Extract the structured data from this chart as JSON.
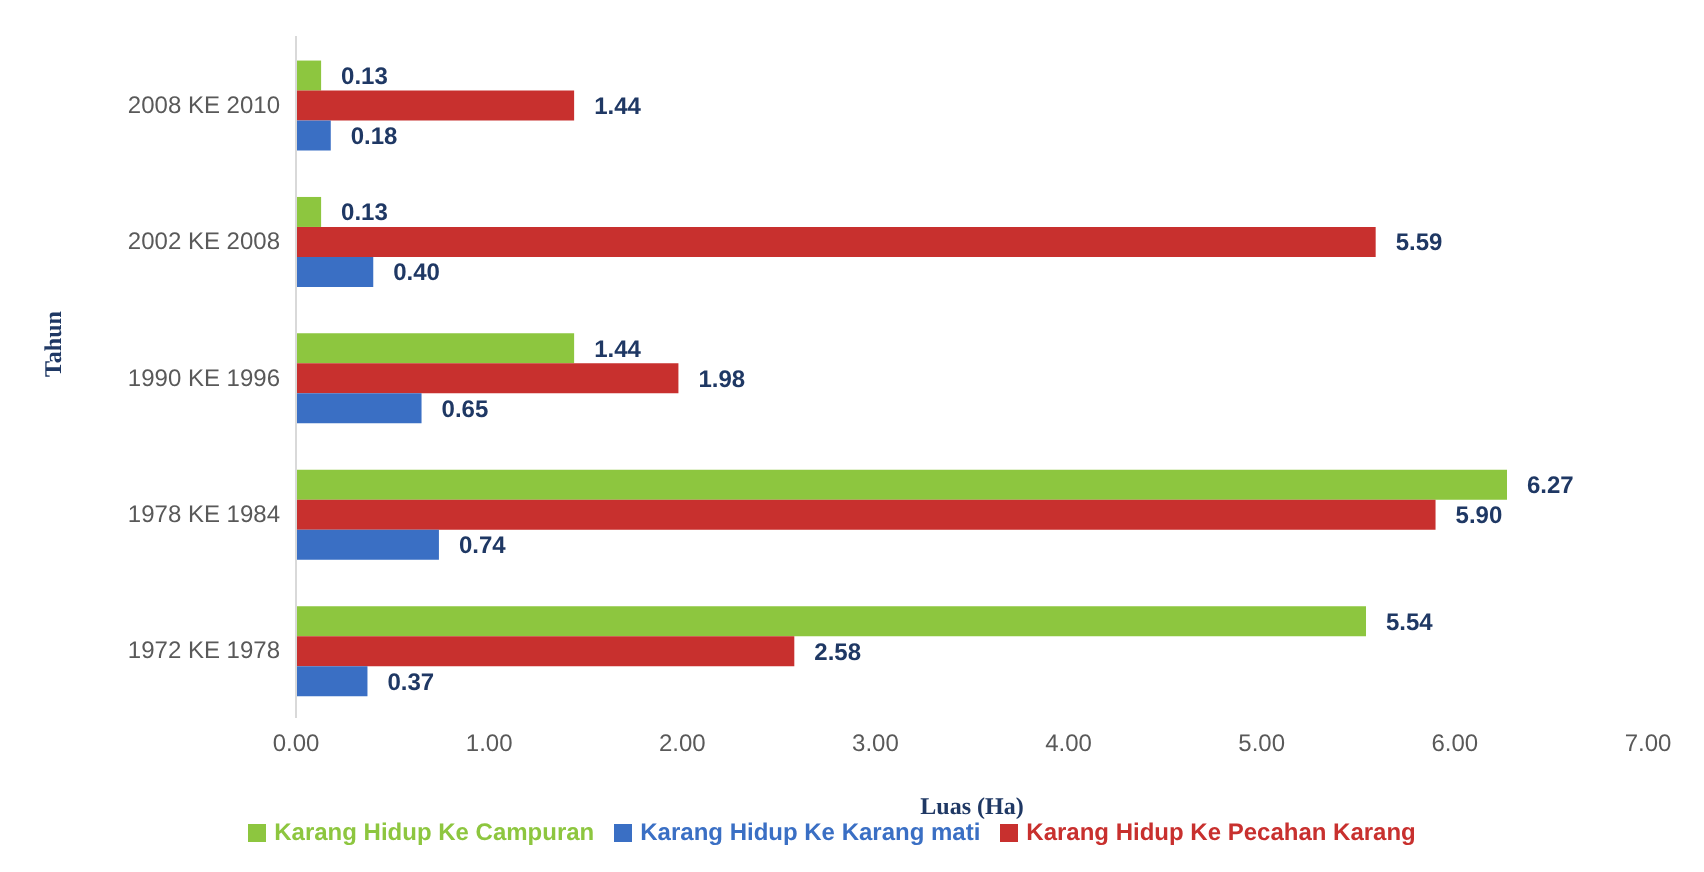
{
  "chart_data": {
    "type": "bar",
    "orientation": "horizontal",
    "xlabel": "Luas (Ha)",
    "ylabel": "Tahun",
    "categories": [
      "2008 KE 2010",
      "2002 KE 2008",
      "1990 KE 1996",
      "1978 KE 1984",
      "1972 KE 1978"
    ],
    "series": [
      {
        "name": "Karang Hidup Ke Campuran",
        "color": "#8dc63f",
        "values": [
          0.13,
          0.13,
          1.44,
          6.27,
          5.54
        ],
        "value_labels": [
          "0.13",
          "0.13",
          "1.44",
          "6.27",
          "5.54"
        ]
      },
      {
        "name": "Karang Hidup Ke Pecahan Karang",
        "color": "#c8302e",
        "values": [
          1.44,
          5.59,
          1.98,
          5.9,
          2.58
        ],
        "value_labels": [
          "1.44",
          "5.59",
          "1.98",
          "5.90",
          "2.58"
        ]
      },
      {
        "name": "Karang Hidup Ke Karang mati",
        "color": "#3a6fc4",
        "values": [
          0.18,
          0.4,
          0.65,
          0.74,
          0.37
        ],
        "value_labels": [
          "0.18",
          "0.40",
          "0.65",
          "0.74",
          "0.37"
        ]
      }
    ],
    "xlim": [
      0,
      7
    ],
    "xticks": [
      {
        "value": 0,
        "label": "0.00"
      },
      {
        "value": 1,
        "label": "1.00"
      },
      {
        "value": 2,
        "label": "2.00"
      },
      {
        "value": 3,
        "label": "3.00"
      },
      {
        "value": 4,
        "label": "4.00"
      },
      {
        "value": 5,
        "label": "5.00"
      },
      {
        "value": 6,
        "label": "6.00"
      },
      {
        "value": 7,
        "label": "7.00"
      }
    ],
    "grid": false,
    "legend": "bottom"
  }
}
